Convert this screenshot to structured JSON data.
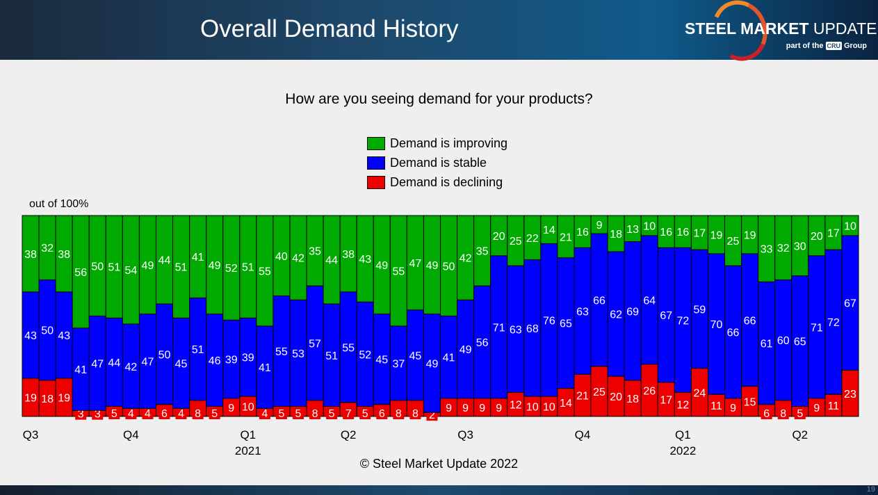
{
  "header": {
    "title": "Overall Demand History",
    "logo_text": "STEEL MARKET UPDATE",
    "logo_sub_before": "part of the",
    "logo_cru": "CRU",
    "logo_sub_after": "Group",
    "page_number": "19"
  },
  "footer": {
    "copyright": "© Steel Market Update 2022"
  },
  "chart_data": {
    "type": "bar",
    "stacked": true,
    "title": "How are you seeing demand for your products?",
    "ylabel": "out of 100%",
    "ylim": [
      0,
      100
    ],
    "legend_placement": "top-center",
    "x_tick_labels": [
      {
        "index": 0,
        "label": "Q3",
        "year": ""
      },
      {
        "index": 6,
        "label": "Q4",
        "year": ""
      },
      {
        "index": 13,
        "label": "Q1",
        "year": "2021"
      },
      {
        "index": 19,
        "label": "Q2",
        "year": ""
      },
      {
        "index": 26,
        "label": "Q3",
        "year": ""
      },
      {
        "index": 33,
        "label": "Q4",
        "year": ""
      },
      {
        "index": 39,
        "label": "Q1",
        "year": "2022"
      },
      {
        "index": 46,
        "label": "Q2",
        "year": ""
      }
    ],
    "series": [
      {
        "name": "Demand is declining",
        "color": "#ee0000",
        "values": [
          19,
          18,
          19,
          3,
          3,
          5,
          4,
          4,
          6,
          4,
          8,
          5,
          9,
          10,
          4,
          5,
          5,
          8,
          5,
          7,
          5,
          6,
          8,
          8,
          2,
          9,
          9,
          9,
          9,
          12,
          10,
          10,
          14,
          21,
          25,
          20,
          18,
          26,
          17,
          12,
          24,
          11,
          9,
          15,
          6,
          8,
          5,
          9,
          11,
          23
        ]
      },
      {
        "name": "Demand is stable",
        "color": "#0000ff",
        "values": [
          43,
          50,
          43,
          41,
          47,
          44,
          42,
          47,
          50,
          45,
          51,
          46,
          39,
          39,
          41,
          55,
          53,
          57,
          51,
          55,
          52,
          45,
          37,
          45,
          49,
          41,
          49,
          56,
          71,
          63,
          68,
          76,
          65,
          63,
          66,
          62,
          69,
          64,
          67,
          72,
          59,
          70,
          66,
          66,
          61,
          60,
          65,
          71,
          72,
          67
        ]
      },
      {
        "name": "Demand is improving",
        "color": "#00aa00",
        "values": [
          38,
          32,
          38,
          56,
          50,
          51,
          54,
          49,
          44,
          51,
          41,
          49,
          52,
          51,
          55,
          40,
          42,
          35,
          44,
          38,
          43,
          49,
          55,
          47,
          49,
          50,
          42,
          35,
          20,
          25,
          22,
          14,
          21,
          16,
          9,
          18,
          13,
          10,
          16,
          16,
          17,
          19,
          25,
          19,
          33,
          32,
          30,
          20,
          17,
          10
        ]
      }
    ]
  }
}
